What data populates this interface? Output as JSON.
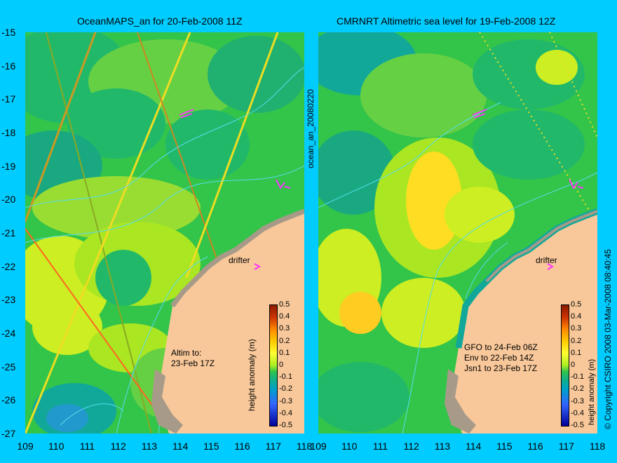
{
  "left_panel": {
    "title": "OceanMAPS_an for 20-Feb-2008 11Z",
    "side_label": "ocean_an_20080220",
    "drifter_label": "drifter",
    "altim_note": [
      "Altim to:",
      "23-Feb 17Z"
    ]
  },
  "right_panel": {
    "title": "CMRNRT Altimetric sea level  for 19-Feb-2008 12Z",
    "drifter_label": "drifter",
    "altim_note": [
      "GFO to 24-Feb 06Z",
      "Env to 22-Feb 14Z",
      "Jsn1 to 23-Feb 17Z"
    ],
    "copyright": "© Copyright CSIRO 2008   03-Mar-2008 08:40:45"
  },
  "axes": {
    "y_ticks": [
      "-15",
      "-16",
      "-17",
      "-18",
      "-19",
      "-20",
      "-21",
      "-22",
      "-23",
      "-24",
      "-25",
      "-26",
      "-27"
    ],
    "x_ticks": [
      "109",
      "110",
      "111",
      "112",
      "113",
      "114",
      "115",
      "116",
      "117",
      "118"
    ],
    "lat_range": [
      -27,
      -15
    ],
    "lon_range": [
      109,
      118
    ]
  },
  "colorbar": {
    "label": "height anomaly (m)",
    "ticks": [
      "0.5",
      "0.4",
      "0.3",
      "0.2",
      "0.1",
      "0",
      "-0.1",
      "-0.2",
      "-0.3",
      "-0.4",
      "-0.5"
    ]
  },
  "colors": {
    "background": "#00ccff",
    "land": "#f8c89a",
    "coast": "#a89a88",
    "drifter": "#ff33ff"
  }
}
